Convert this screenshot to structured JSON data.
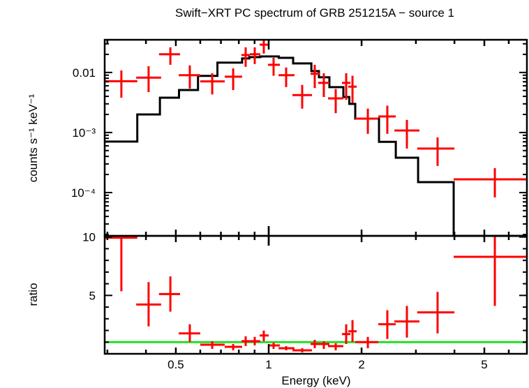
{
  "chart_data": [
    {
      "type": "scatter",
      "title": "Swift−XRT PC spectrum of GRB 251215A − source 1",
      "ylabel": "counts s⁻¹ keV⁻¹",
      "xscale": "log",
      "yscale": "log",
      "xlim": [
        0.294,
        6.87
      ],
      "ylim": [
        1.9e-05,
        0.035
      ],
      "ytick_labels": [
        {
          "value": 0.01,
          "label": "0.01"
        },
        {
          "value": 0.001,
          "label": "10⁻³"
        },
        {
          "value": 0.0001,
          "label": "10⁻⁴"
        }
      ],
      "grid": false,
      "colors": {
        "data": "#ff0000",
        "model": "#000000"
      },
      "series": [
        {
          "kind": "data-with-errors",
          "points": [
            {
              "x": 0.333,
              "x_lo": 0.294,
              "x_hi": 0.375,
              "y": 0.00715,
              "y_lo": 0.0038,
              "y_hi": 0.0108
            },
            {
              "x": 0.408,
              "x_lo": 0.372,
              "x_hi": 0.448,
              "y": 0.0082,
              "y_lo": 0.0047,
              "y_hi": 0.0127
            },
            {
              "x": 0.48,
              "x_lo": 0.441,
              "x_hi": 0.516,
              "y": 0.0201,
              "y_lo": 0.0134,
              "y_hi": 0.0262
            },
            {
              "x": 0.555,
              "x_lo": 0.511,
              "x_hi": 0.6,
              "y": 0.009,
              "y_lo": 0.0054,
              "y_hi": 0.0131
            },
            {
              "x": 0.656,
              "x_lo": 0.6,
              "x_hi": 0.72,
              "y": 0.0071,
              "y_lo": 0.0043,
              "y_hi": 0.0097
            },
            {
              "x": 0.767,
              "x_lo": 0.72,
              "x_hi": 0.82,
              "y": 0.0085,
              "y_lo": 0.0051,
              "y_hi": 0.0117
            },
            {
              "x": 0.842,
              "x_lo": 0.816,
              "x_hi": 0.869,
              "y": 0.0195,
              "y_lo": 0.0124,
              "y_hi": 0.0262
            },
            {
              "x": 0.901,
              "x_lo": 0.869,
              "x_hi": 0.939,
              "y": 0.0201,
              "y_lo": 0.0138,
              "y_hi": 0.0262
            },
            {
              "x": 0.964,
              "x_lo": 0.935,
              "x_hi": 1.0,
              "y": 0.029,
              "y_lo": 0.0206,
              "y_hi": 0.036
            },
            {
              "x": 1.037,
              "x_lo": 0.995,
              "x_hi": 1.087,
              "y": 0.0134,
              "y_lo": 0.0088,
              "y_hi": 0.0175
            },
            {
              "x": 1.139,
              "x_lo": 1.076,
              "x_hi": 1.212,
              "y": 0.009,
              "y_lo": 0.0057,
              "y_hi": 0.0121
            },
            {
              "x": 1.284,
              "x_lo": 1.194,
              "x_hi": 1.381,
              "y": 0.0042,
              "y_lo": 0.0025,
              "y_hi": 0.0062
            },
            {
              "x": 1.41,
              "x_lo": 1.367,
              "x_hi": 1.463,
              "y": 0.0095,
              "y_lo": 0.0055,
              "y_hi": 0.0134
            },
            {
              "x": 1.509,
              "x_lo": 1.447,
              "x_hi": 1.573,
              "y": 0.0067,
              "y_lo": 0.0039,
              "y_hi": 0.0097
            },
            {
              "x": 1.649,
              "x_lo": 1.557,
              "x_hi": 1.746,
              "y": 0.0037,
              "y_lo": 0.0021,
              "y_hi": 0.0053
            },
            {
              "x": 1.783,
              "x_lo": 1.728,
              "x_hi": 1.84,
              "y": 0.0067,
              "y_lo": 0.0035,
              "y_hi": 0.0097
            },
            {
              "x": 1.869,
              "x_lo": 1.811,
              "x_hi": 1.928,
              "y": 0.0058,
              "y_lo": 0.0031,
              "y_hi": 0.0088
            },
            {
              "x": 2.096,
              "x_lo": 1.908,
              "x_hi": 2.266,
              "y": 0.0017,
              "y_lo": 0.00095,
              "y_hi": 0.0025
            },
            {
              "x": 2.424,
              "x_lo": 2.266,
              "x_hi": 2.582,
              "y": 0.00185,
              "y_lo": 0.00095,
              "y_hi": 0.0028
            },
            {
              "x": 2.805,
              "x_lo": 2.555,
              "x_hi": 3.081,
              "y": 0.00108,
              "y_lo": 0.00054,
              "y_hi": 0.00162
            },
            {
              "x": 3.527,
              "x_lo": 3.03,
              "x_hi": 4.0,
              "y": 0.00054,
              "y_lo": 0.000277,
              "y_hi": 0.00083
            },
            {
              "x": 5.408,
              "x_lo": 3.977,
              "x_hi": 6.87,
              "y": 0.000166,
              "y_lo": 8.3e-05,
              "y_hi": 0.000255
            }
          ]
        },
        {
          "kind": "model-histogram",
          "bin_edges": [
            0.294,
            0.375,
            0.444,
            0.512,
            0.59,
            0.682,
            0.82,
            0.865,
            0.939,
            1.078,
            1.2,
            1.375,
            1.455,
            1.573,
            1.746,
            1.825,
            1.908,
            2.278,
            2.582,
            3.05,
            3.977,
            6.87
          ],
          "values": [
            0.000706,
            0.002,
            0.0038,
            0.0051,
            0.00875,
            0.01455,
            0.0171,
            0.018,
            0.0185,
            0.0175,
            0.01416,
            0.01055,
            0.0083,
            0.0057,
            0.0039,
            0.003,
            0.0017,
            0.0007,
            0.00038,
            0.000149,
            0
          ]
        }
      ]
    },
    {
      "type": "scatter",
      "xlabel": "Energy (keV)",
      "ylabel": "ratio",
      "xscale": "log",
      "xlim": [
        0.294,
        6.87
      ],
      "ylim": [
        0,
        10.1
      ],
      "xtick_labels": [
        {
          "value": 0.5,
          "label": "0.5"
        },
        {
          "value": 1,
          "label": "1"
        },
        {
          "value": 2,
          "label": "2"
        },
        {
          "value": 5,
          "label": "5"
        }
      ],
      "ytick_labels": [
        {
          "value": 10,
          "label": "10"
        },
        {
          "value": 5,
          "label": "5"
        }
      ],
      "reference_line": {
        "y": 1,
        "color": "#22dd22"
      },
      "colors": {
        "data": "#ff0000"
      },
      "points": [
        {
          "x": 0.333,
          "x_lo": 0.294,
          "x_hi": 0.375,
          "y": 9.94,
          "y_lo": 5.36,
          "y_hi": 10.5
        },
        {
          "x": 0.408,
          "x_lo": 0.372,
          "x_hi": 0.448,
          "y": 4.22,
          "y_lo": 2.35,
          "y_hi": 6.14
        },
        {
          "x": 0.48,
          "x_lo": 0.441,
          "x_hi": 0.516,
          "y": 5.12,
          "y_lo": 3.61,
          "y_hi": 6.63
        },
        {
          "x": 0.555,
          "x_lo": 0.511,
          "x_hi": 0.6,
          "y": 1.75,
          "y_lo": 1.02,
          "y_hi": 2.53
        },
        {
          "x": 0.656,
          "x_lo": 0.6,
          "x_hi": 0.72,
          "y": 0.78,
          "y_lo": 0.42,
          "y_hi": 1.08
        },
        {
          "x": 0.767,
          "x_lo": 0.72,
          "x_hi": 0.82,
          "y": 0.6,
          "y_lo": 0.3,
          "y_hi": 0.84
        },
        {
          "x": 0.842,
          "x_lo": 0.816,
          "x_hi": 0.869,
          "y": 1.08,
          "y_lo": 0.66,
          "y_hi": 1.5
        },
        {
          "x": 0.901,
          "x_lo": 0.869,
          "x_hi": 0.939,
          "y": 1.08,
          "y_lo": 0.72,
          "y_hi": 1.45
        },
        {
          "x": 0.964,
          "x_lo": 0.935,
          "x_hi": 1.0,
          "y": 1.57,
          "y_lo": 1.08,
          "y_hi": 1.99
        },
        {
          "x": 1.037,
          "x_lo": 0.995,
          "x_hi": 1.087,
          "y": 0.72,
          "y_lo": 0.42,
          "y_hi": 0.96
        },
        {
          "x": 1.139,
          "x_lo": 1.076,
          "x_hi": 1.212,
          "y": 0.48,
          "y_lo": 0.3,
          "y_hi": 0.66
        },
        {
          "x": 1.284,
          "x_lo": 1.194,
          "x_hi": 1.381,
          "y": 0.3,
          "y_lo": 0.12,
          "y_hi": 0.48
        },
        {
          "x": 1.41,
          "x_lo": 1.367,
          "x_hi": 1.463,
          "y": 0.84,
          "y_lo": 0.48,
          "y_hi": 1.2
        },
        {
          "x": 1.509,
          "x_lo": 1.447,
          "x_hi": 1.573,
          "y": 0.84,
          "y_lo": 0.42,
          "y_hi": 1.08
        },
        {
          "x": 1.649,
          "x_lo": 1.557,
          "x_hi": 1.746,
          "y": 0.66,
          "y_lo": 0.3,
          "y_hi": 0.9
        },
        {
          "x": 1.783,
          "x_lo": 1.728,
          "x_hi": 1.84,
          "y": 1.69,
          "y_lo": 0.84,
          "y_hi": 2.53
        },
        {
          "x": 1.869,
          "x_lo": 1.811,
          "x_hi": 1.928,
          "y": 1.93,
          "y_lo": 1.02,
          "y_hi": 2.89
        },
        {
          "x": 2.096,
          "x_lo": 1.908,
          "x_hi": 2.266,
          "y": 1.0,
          "y_lo": 0.48,
          "y_hi": 1.45
        },
        {
          "x": 2.424,
          "x_lo": 2.266,
          "x_hi": 2.582,
          "y": 2.53,
          "y_lo": 1.27,
          "y_hi": 3.73
        },
        {
          "x": 2.805,
          "x_lo": 2.555,
          "x_hi": 3.081,
          "y": 2.77,
          "y_lo": 1.39,
          "y_hi": 4.1
        },
        {
          "x": 3.527,
          "x_lo": 3.03,
          "x_hi": 4.0,
          "y": 3.55,
          "y_lo": 1.75,
          "y_hi": 5.3
        },
        {
          "x": 5.408,
          "x_lo": 3.977,
          "x_hi": 6.87,
          "y": 8.31,
          "y_lo": 4.1,
          "y_hi": 10.5
        }
      ]
    }
  ]
}
